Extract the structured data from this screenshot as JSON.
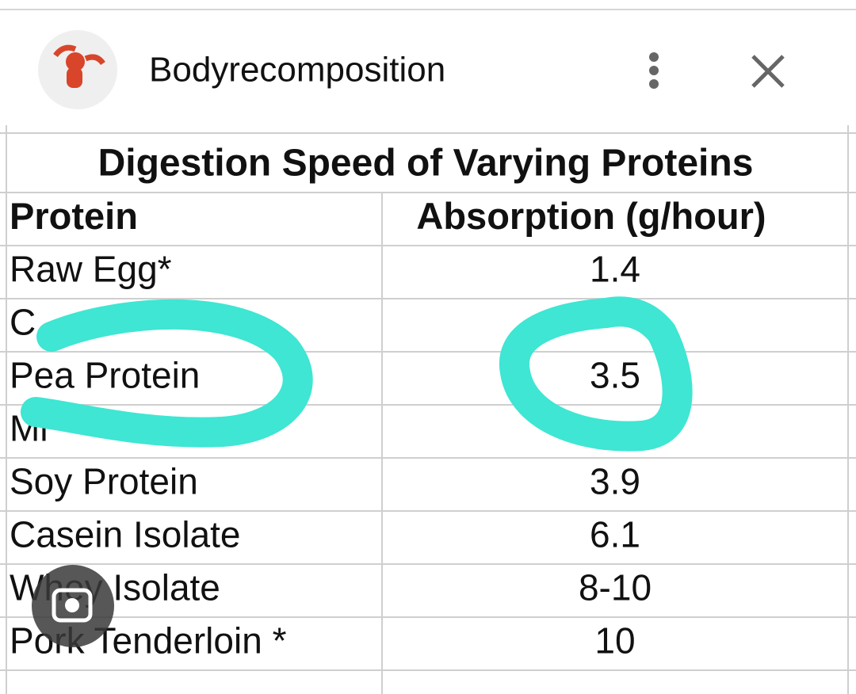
{
  "header": {
    "title": "Bodyrecomposition"
  },
  "table": {
    "title": "Digestion Speed of Varying Proteins",
    "columns": [
      "Protein",
      "Absorption (g/hour)"
    ],
    "rows": [
      [
        "Raw Egg*",
        "1.4"
      ],
      [
        "C"
      ],
      [
        "Pea Protein",
        "3.5"
      ],
      [
        "Mi"
      ],
      [
        "Soy Protein",
        "3.9"
      ],
      [
        "Casein Isolate",
        "6.1"
      ],
      [
        "Whey Isolate",
        "8-10"
      ],
      [
        "Pork Tenderloin *",
        "10"
      ]
    ]
  }
}
